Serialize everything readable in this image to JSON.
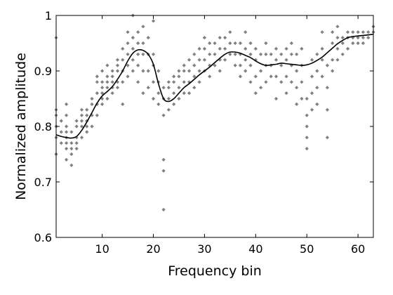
{
  "chart_data": {
    "type": "scatter",
    "xlabel": "Frequency bin",
    "ylabel": "Normalized amplitude",
    "xlim": [
      1,
      63
    ],
    "ylim": [
      0.6,
      1.0
    ],
    "x_ticks": [
      10,
      20,
      30,
      40,
      50,
      60
    ],
    "y_ticks": [
      0.6,
      0.7,
      0.8,
      0.9,
      1.0
    ],
    "y_tick_labels": [
      "0.6",
      "0.7",
      "0.8",
      "0.9",
      "1"
    ],
    "grid": false,
    "colors": {
      "points": "#808080",
      "curve": "#000000",
      "axes": "#000000"
    },
    "series": [
      {
        "kind": "scatter",
        "points": [
          [
            1,
            0.75
          ],
          [
            1,
            0.78
          ],
          [
            1,
            0.8
          ],
          [
            1,
            0.82
          ],
          [
            1,
            0.83
          ],
          [
            1,
            0.96
          ],
          [
            2,
            0.77
          ],
          [
            2,
            0.79
          ],
          [
            2,
            0.81
          ],
          [
            3,
            0.74
          ],
          [
            3,
            0.76
          ],
          [
            3,
            0.77
          ],
          [
            3,
            0.78
          ],
          [
            3,
            0.79
          ],
          [
            3,
            0.8
          ],
          [
            3,
            0.82
          ],
          [
            3,
            0.84
          ],
          [
            4,
            0.73
          ],
          [
            4,
            0.75
          ],
          [
            4,
            0.76
          ],
          [
            4,
            0.77
          ],
          [
            4,
            0.79
          ],
          [
            5,
            0.76
          ],
          [
            5,
            0.77
          ],
          [
            5,
            0.78
          ],
          [
            5,
            0.8
          ],
          [
            5,
            0.81
          ],
          [
            6,
            0.78
          ],
          [
            6,
            0.8
          ],
          [
            6,
            0.81
          ],
          [
            6,
            0.82
          ],
          [
            6,
            0.83
          ],
          [
            7,
            0.79
          ],
          [
            7,
            0.8
          ],
          [
            7,
            0.81
          ],
          [
            7,
            0.82
          ],
          [
            7,
            0.83
          ],
          [
            8,
            0.8
          ],
          [
            8,
            0.82
          ],
          [
            8,
            0.84
          ],
          [
            8,
            0.85
          ],
          [
            9,
            0.82
          ],
          [
            9,
            0.84
          ],
          [
            9,
            0.86
          ],
          [
            9,
            0.88
          ],
          [
            9,
            0.89
          ],
          [
            10,
            0.84
          ],
          [
            10,
            0.85
          ],
          [
            10,
            0.86
          ],
          [
            10,
            0.87
          ],
          [
            10,
            0.88
          ],
          [
            10,
            0.9
          ],
          [
            11,
            0.85
          ],
          [
            11,
            0.87
          ],
          [
            11,
            0.88
          ],
          [
            11,
            0.89
          ],
          [
            11,
            0.91
          ],
          [
            12,
            0.86
          ],
          [
            12,
            0.87
          ],
          [
            12,
            0.88
          ],
          [
            12,
            0.89
          ],
          [
            12,
            0.9
          ],
          [
            13,
            0.87
          ],
          [
            13,
            0.88
          ],
          [
            13,
            0.9
          ],
          [
            13,
            0.91
          ],
          [
            13,
            0.92
          ],
          [
            14,
            0.84
          ],
          [
            14,
            0.88
          ],
          [
            14,
            0.9
          ],
          [
            14,
            0.92
          ],
          [
            14,
            0.94
          ],
          [
            15,
            0.89
          ],
          [
            15,
            0.91
          ],
          [
            15,
            0.93
          ],
          [
            15,
            0.95
          ],
          [
            15,
            0.97
          ],
          [
            16,
            0.9
          ],
          [
            16,
            0.92
          ],
          [
            16,
            0.94
          ],
          [
            16,
            0.96
          ],
          [
            16,
            1.0
          ],
          [
            17,
            0.88
          ],
          [
            17,
            0.91
          ],
          [
            17,
            0.93
          ],
          [
            17,
            0.95
          ],
          [
            17,
            0.97
          ],
          [
            18,
            0.86
          ],
          [
            18,
            0.9
          ],
          [
            18,
            0.93
          ],
          [
            18,
            0.95
          ],
          [
            18,
            0.98
          ],
          [
            19,
            0.87
          ],
          [
            19,
            0.9
          ],
          [
            19,
            0.93
          ],
          [
            19,
            0.96
          ],
          [
            20,
            0.85
          ],
          [
            20,
            0.88
          ],
          [
            20,
            0.91
          ],
          [
            20,
            0.93
          ],
          [
            20,
            0.99
          ],
          [
            21,
            0.84
          ],
          [
            21,
            0.86
          ],
          [
            21,
            0.88
          ],
          [
            21,
            0.9
          ],
          [
            22,
            0.65
          ],
          [
            22,
            0.72
          ],
          [
            22,
            0.74
          ],
          [
            22,
            0.82
          ],
          [
            22,
            0.85
          ],
          [
            22,
            0.87
          ],
          [
            23,
            0.83
          ],
          [
            23,
            0.85
          ],
          [
            23,
            0.87
          ],
          [
            23,
            0.88
          ],
          [
            24,
            0.84
          ],
          [
            24,
            0.86
          ],
          [
            24,
            0.88
          ],
          [
            24,
            0.89
          ],
          [
            25,
            0.85
          ],
          [
            25,
            0.87
          ],
          [
            25,
            0.89
          ],
          [
            25,
            0.9
          ],
          [
            26,
            0.86
          ],
          [
            26,
            0.88
          ],
          [
            26,
            0.9
          ],
          [
            26,
            0.91
          ],
          [
            27,
            0.86
          ],
          [
            27,
            0.88
          ],
          [
            27,
            0.9
          ],
          [
            27,
            0.92
          ],
          [
            28,
            0.87
          ],
          [
            28,
            0.89
          ],
          [
            28,
            0.91
          ],
          [
            28,
            0.93
          ],
          [
            29,
            0.88
          ],
          [
            29,
            0.9
          ],
          [
            29,
            0.92
          ],
          [
            29,
            0.94
          ],
          [
            30,
            0.9
          ],
          [
            30,
            0.92
          ],
          [
            30,
            0.94
          ],
          [
            30,
            0.96
          ],
          [
            31,
            0.89
          ],
          [
            31,
            0.91
          ],
          [
            31,
            0.93
          ],
          [
            31,
            0.95
          ],
          [
            32,
            0.91
          ],
          [
            32,
            0.93
          ],
          [
            32,
            0.95
          ],
          [
            33,
            0.9
          ],
          [
            33,
            0.92
          ],
          [
            33,
            0.94
          ],
          [
            33,
            0.96
          ],
          [
            34,
            0.92
          ],
          [
            34,
            0.94
          ],
          [
            34,
            0.96
          ],
          [
            35,
            0.93
          ],
          [
            35,
            0.95
          ],
          [
            35,
            0.97
          ],
          [
            36,
            0.91
          ],
          [
            36,
            0.93
          ],
          [
            36,
            0.95
          ],
          [
            37,
            0.89
          ],
          [
            37,
            0.91
          ],
          [
            37,
            0.93
          ],
          [
            37,
            0.95
          ],
          [
            38,
            0.9
          ],
          [
            38,
            0.92
          ],
          [
            38,
            0.94
          ],
          [
            38,
            0.97
          ],
          [
            39,
            0.88
          ],
          [
            39,
            0.91
          ],
          [
            39,
            0.93
          ],
          [
            39,
            0.95
          ],
          [
            40,
            0.86
          ],
          [
            40,
            0.89
          ],
          [
            40,
            0.92
          ],
          [
            40,
            0.94
          ],
          [
            41,
            0.87
          ],
          [
            41,
            0.9
          ],
          [
            41,
            0.93
          ],
          [
            42,
            0.88
          ],
          [
            42,
            0.91
          ],
          [
            42,
            0.93
          ],
          [
            42,
            0.95
          ],
          [
            43,
            0.89
          ],
          [
            43,
            0.91
          ],
          [
            43,
            0.93
          ],
          [
            44,
            0.85
          ],
          [
            44,
            0.89
          ],
          [
            44,
            0.92
          ],
          [
            44,
            0.94
          ],
          [
            45,
            0.88
          ],
          [
            45,
            0.91
          ],
          [
            45,
            0.93
          ],
          [
            46,
            0.86
          ],
          [
            46,
            0.89
          ],
          [
            46,
            0.92
          ],
          [
            46,
            0.94
          ],
          [
            47,
            0.88
          ],
          [
            47,
            0.91
          ],
          [
            47,
            0.93
          ],
          [
            47,
            0.95
          ],
          [
            48,
            0.84
          ],
          [
            48,
            0.87
          ],
          [
            48,
            0.9
          ],
          [
            48,
            0.93
          ],
          [
            49,
            0.85
          ],
          [
            49,
            0.88
          ],
          [
            49,
            0.91
          ],
          [
            49,
            0.94
          ],
          [
            50,
            0.76
          ],
          [
            50,
            0.78
          ],
          [
            50,
            0.8
          ],
          [
            50,
            0.82
          ],
          [
            50,
            0.85
          ],
          [
            51,
            0.83
          ],
          [
            51,
            0.86
          ],
          [
            51,
            0.89
          ],
          [
            51,
            0.92
          ],
          [
            52,
            0.84
          ],
          [
            52,
            0.87
          ],
          [
            52,
            0.9
          ],
          [
            52,
            0.93
          ],
          [
            53,
            0.89
          ],
          [
            53,
            0.92
          ],
          [
            53,
            0.94
          ],
          [
            53,
            0.97
          ],
          [
            54,
            0.78
          ],
          [
            54,
            0.83
          ],
          [
            54,
            0.87
          ],
          [
            54,
            0.91
          ],
          [
            55,
            0.9
          ],
          [
            55,
            0.92
          ],
          [
            55,
            0.95
          ],
          [
            55,
            0.97
          ],
          [
            56,
            0.92
          ],
          [
            56,
            0.94
          ],
          [
            56,
            0.96
          ],
          [
            56,
            0.98
          ],
          [
            57,
            0.93
          ],
          [
            57,
            0.95
          ],
          [
            57,
            0.96
          ],
          [
            58,
            0.94
          ],
          [
            58,
            0.96
          ],
          [
            58,
            0.97
          ],
          [
            59,
            0.95
          ],
          [
            59,
            0.96
          ],
          [
            59,
            0.97
          ],
          [
            60,
            0.95
          ],
          [
            60,
            0.96
          ],
          [
            60,
            0.97
          ],
          [
            61,
            0.95
          ],
          [
            61,
            0.96
          ],
          [
            61,
            0.97
          ],
          [
            62,
            0.96
          ],
          [
            62,
            0.97
          ],
          [
            63,
            0.97
          ],
          [
            63,
            0.98
          ]
        ]
      },
      {
        "kind": "line",
        "points": [
          [
            1,
            0.785
          ],
          [
            2,
            0.782
          ],
          [
            3,
            0.78
          ],
          [
            4,
            0.779
          ],
          [
            5,
            0.782
          ],
          [
            6,
            0.793
          ],
          [
            7,
            0.808
          ],
          [
            8,
            0.825
          ],
          [
            9,
            0.842
          ],
          [
            10,
            0.855
          ],
          [
            11,
            0.863
          ],
          [
            12,
            0.872
          ],
          [
            13,
            0.885
          ],
          [
            14,
            0.9
          ],
          [
            15,
            0.918
          ],
          [
            16,
            0.932
          ],
          [
            17,
            0.938
          ],
          [
            18,
            0.937
          ],
          [
            19,
            0.93
          ],
          [
            20,
            0.912
          ],
          [
            21,
            0.877
          ],
          [
            22,
            0.85
          ],
          [
            23,
            0.845
          ],
          [
            24,
            0.85
          ],
          [
            25,
            0.86
          ],
          [
            26,
            0.87
          ],
          [
            27,
            0.877
          ],
          [
            28,
            0.885
          ],
          [
            29,
            0.893
          ],
          [
            30,
            0.9
          ],
          [
            31,
            0.907
          ],
          [
            32,
            0.915
          ],
          [
            33,
            0.923
          ],
          [
            34,
            0.93
          ],
          [
            35,
            0.934
          ],
          [
            36,
            0.934
          ],
          [
            37,
            0.932
          ],
          [
            38,
            0.928
          ],
          [
            39,
            0.924
          ],
          [
            40,
            0.918
          ],
          [
            41,
            0.913
          ],
          [
            42,
            0.91
          ],
          [
            43,
            0.911
          ],
          [
            44,
            0.912
          ],
          [
            45,
            0.914
          ],
          [
            46,
            0.913
          ],
          [
            47,
            0.912
          ],
          [
            48,
            0.911
          ],
          [
            49,
            0.91
          ],
          [
            50,
            0.911
          ],
          [
            51,
            0.914
          ],
          [
            52,
            0.919
          ],
          [
            53,
            0.925
          ],
          [
            54,
            0.933
          ],
          [
            55,
            0.941
          ],
          [
            56,
            0.949
          ],
          [
            57,
            0.955
          ],
          [
            58,
            0.96
          ],
          [
            59,
            0.962
          ],
          [
            60,
            0.963
          ],
          [
            61,
            0.964
          ],
          [
            62,
            0.965
          ],
          [
            63,
            0.966
          ]
        ]
      }
    ]
  }
}
